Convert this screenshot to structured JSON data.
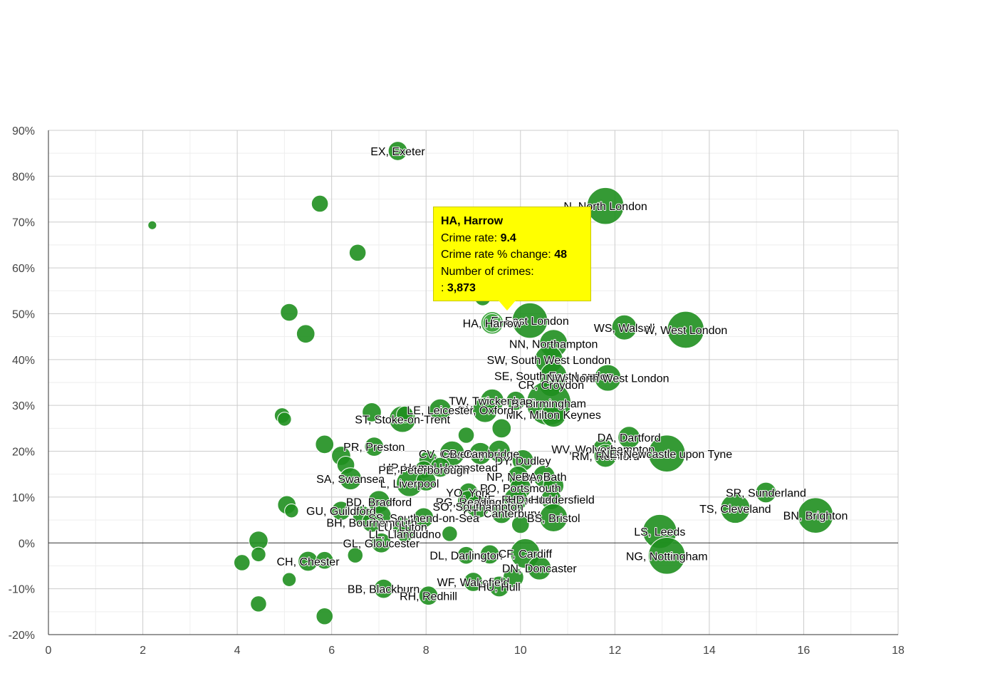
{
  "chart_data": {
    "type": "scatter",
    "title": "",
    "xlabel": "",
    "ylabel": "",
    "xlim": [
      0,
      18
    ],
    "ylim": [
      -20,
      90
    ],
    "x_ticks": [
      "0",
      "2",
      "4",
      "6",
      "8",
      "10",
      "12",
      "14",
      "16",
      "18"
    ],
    "y_ticks": [
      "90%",
      "80%",
      "70%",
      "60%",
      "50%",
      "40%",
      "30%",
      "20%",
      "10%",
      "0%",
      "-10%",
      "-20%"
    ],
    "grid": true,
    "points": [
      {
        "x": 7.4,
        "y": 85.5,
        "size": 1.8,
        "label": "EX, Exeter"
      },
      {
        "x": 11.8,
        "y": 73.5,
        "size": 4.2,
        "label": "N, North London"
      },
      {
        "x": 5.75,
        "y": 74,
        "size": 1.5,
        "label": ""
      },
      {
        "x": 2.2,
        "y": 69.3,
        "size": 0.4,
        "label": ""
      },
      {
        "x": 6.55,
        "y": 63.3,
        "size": 1.5,
        "label": ""
      },
      {
        "x": 9.2,
        "y": 53.5,
        "size": 1.4,
        "label": ""
      },
      {
        "x": 5.1,
        "y": 50.3,
        "size": 1.6,
        "label": ""
      },
      {
        "x": 5.45,
        "y": 45.6,
        "size": 1.7,
        "label": ""
      },
      {
        "x": 10.2,
        "y": 48.5,
        "size": 4.0,
        "label": "E, East London"
      },
      {
        "x": 9.4,
        "y": 48,
        "size": 2.3,
        "label": "HA, Harrow",
        "highlight": true
      },
      {
        "x": 12.2,
        "y": 47,
        "size": 2.6,
        "label": "WS, Walsall"
      },
      {
        "x": 13.5,
        "y": 46.5,
        "size": 4.2,
        "label": "W, West London"
      },
      {
        "x": 10.7,
        "y": 43.5,
        "size": 3.0,
        "label": "NN, Northampton"
      },
      {
        "x": 10.6,
        "y": 40,
        "size": 3.0,
        "label": "SW, South West London"
      },
      {
        "x": 10.7,
        "y": 36.5,
        "size": 2.8,
        "label": "SE, South East London"
      },
      {
        "x": 11.85,
        "y": 36,
        "size": 2.8,
        "label": "NW, North West London"
      },
      {
        "x": 10.65,
        "y": 34.5,
        "size": 2.4,
        "label": "CR, Croydon"
      },
      {
        "x": 9.4,
        "y": 31,
        "size": 2.4,
        "label": "TW, Twickenham"
      },
      {
        "x": 9.9,
        "y": 31,
        "size": 1.8,
        "label": ""
      },
      {
        "x": 10.6,
        "y": 30.5,
        "size": 5.2,
        "label": "B, Birmingham"
      },
      {
        "x": 10.7,
        "y": 28,
        "size": 2.6,
        "label": "MK, Milton Keynes"
      },
      {
        "x": 9.25,
        "y": 29,
        "size": 2.6,
        "label": "OX, Oxford"
      },
      {
        "x": 8.3,
        "y": 29,
        "size": 2.2,
        "label": "LE, Leicester"
      },
      {
        "x": 7.5,
        "y": 27,
        "size": 2.8,
        "label": "ST, Stoke-on-Trent"
      },
      {
        "x": 6.85,
        "y": 28.5,
        "size": 1.8,
        "label": ""
      },
      {
        "x": 7.55,
        "y": 28,
        "size": 1.5,
        "label": ""
      },
      {
        "x": 4.95,
        "y": 27.8,
        "size": 1.3,
        "label": ""
      },
      {
        "x": 5.0,
        "y": 27,
        "size": 1.1,
        "label": ""
      },
      {
        "x": 9.6,
        "y": 25,
        "size": 1.8,
        "label": ""
      },
      {
        "x": 8.85,
        "y": 23.5,
        "size": 1.4,
        "label": ""
      },
      {
        "x": 12.3,
        "y": 23,
        "size": 2.2,
        "label": "DA, Dartford"
      },
      {
        "x": 11.75,
        "y": 20.5,
        "size": 2.0,
        "label": "WV, Wolverhampton"
      },
      {
        "x": 11.8,
        "y": 19,
        "size": 2.3,
        "label": "RM, Romford"
      },
      {
        "x": 13.1,
        "y": 19.5,
        "size": 4.2,
        "label": "NE, Newcastle upon Tyne"
      },
      {
        "x": 5.85,
        "y": 21.5,
        "size": 1.7,
        "label": ""
      },
      {
        "x": 6.9,
        "y": 21,
        "size": 1.8,
        "label": "PR, Preston"
      },
      {
        "x": 6.2,
        "y": 19,
        "size": 1.8,
        "label": ""
      },
      {
        "x": 6.3,
        "y": 17,
        "size": 1.6,
        "label": ""
      },
      {
        "x": 8.55,
        "y": 19.5,
        "size": 2.6,
        "label": "CV, Coventry"
      },
      {
        "x": 9.15,
        "y": 19.5,
        "size": 2.2,
        "label": "CB, Cambridge"
      },
      {
        "x": 9.55,
        "y": 20,
        "size": 2.2,
        "label": ""
      },
      {
        "x": 10.05,
        "y": 18,
        "size": 2.1,
        "label": "DY, Dudley"
      },
      {
        "x": 8.05,
        "y": 18,
        "size": 1.8,
        "label": ""
      },
      {
        "x": 8.3,
        "y": 16.5,
        "size": 1.9,
        "label": "HP, Hemel Hempstead"
      },
      {
        "x": 7.95,
        "y": 16,
        "size": 1.6,
        "label": "PE, Peterborough"
      },
      {
        "x": 9.95,
        "y": 14.5,
        "size": 2.0,
        "label": "NP, Newport"
      },
      {
        "x": 10.5,
        "y": 14.5,
        "size": 2.2,
        "label": "BA, Bath"
      },
      {
        "x": 6.4,
        "y": 14,
        "size": 2.2,
        "label": "SA, Swansea"
      },
      {
        "x": 7.65,
        "y": 13,
        "size": 2.8,
        "label": "L, Liverpool"
      },
      {
        "x": 8.0,
        "y": 13.5,
        "size": 1.9,
        "label": ""
      },
      {
        "x": 10.0,
        "y": 12,
        "size": 2.1,
        "label": "PO, Portsmouth"
      },
      {
        "x": 10.7,
        "y": 12.5,
        "size": 2.0,
        "label": ""
      },
      {
        "x": 8.9,
        "y": 11,
        "size": 1.8,
        "label": "YO, York"
      },
      {
        "x": 9.9,
        "y": 9.5,
        "size": 2.4,
        "label": "ME, Rochester"
      },
      {
        "x": 10.65,
        "y": 9.5,
        "size": 2.0,
        "label": "HD, Huddersfield"
      },
      {
        "x": 8.9,
        "y": 9,
        "size": 2.2,
        "label": "RG, Reading"
      },
      {
        "x": 7.0,
        "y": 9,
        "size": 2.2,
        "label": "BD, Bradford"
      },
      {
        "x": 9.1,
        "y": 8,
        "size": 2.4,
        "label": "SO, Southampton"
      },
      {
        "x": 9.6,
        "y": 6.5,
        "size": 2.0,
        "label": "CT, Canterbury"
      },
      {
        "x": 10.7,
        "y": 5.5,
        "size": 3.0,
        "label": "BS, Bristol"
      },
      {
        "x": 5.05,
        "y": 8.3,
        "size": 1.7,
        "label": ""
      },
      {
        "x": 5.15,
        "y": 7,
        "size": 1.1,
        "label": ""
      },
      {
        "x": 6.2,
        "y": 7,
        "size": 1.8,
        "label": "GU, Guildford"
      },
      {
        "x": 6.65,
        "y": 6,
        "size": 1.8,
        "label": ""
      },
      {
        "x": 7.05,
        "y": 6,
        "size": 1.9,
        "label": ""
      },
      {
        "x": 7.95,
        "y": 5.5,
        "size": 1.9,
        "label": "SS, Southend-on-Sea"
      },
      {
        "x": 6.85,
        "y": 4.5,
        "size": 1.9,
        "label": "BH, Bournemouth"
      },
      {
        "x": 7.5,
        "y": 3.5,
        "size": 1.9,
        "label": "LU, Luton"
      },
      {
        "x": 10.0,
        "y": 4,
        "size": 1.6,
        "label": ""
      },
      {
        "x": 8.5,
        "y": 2,
        "size": 1.3,
        "label": ""
      },
      {
        "x": 7.55,
        "y": 2,
        "size": 1.5,
        "label": "LL, Llandudno"
      },
      {
        "x": 12.95,
        "y": 2.5,
        "size": 3.8,
        "label": "LS, Leeds"
      },
      {
        "x": 4.45,
        "y": 0.5,
        "size": 1.8,
        "label": ""
      },
      {
        "x": 7.05,
        "y": 0,
        "size": 1.9,
        "label": "GL, Gloucester"
      },
      {
        "x": 16.25,
        "y": 6,
        "size": 4.0,
        "label": "BN, Brighton"
      },
      {
        "x": 14.55,
        "y": 7.5,
        "size": 3.2,
        "label": "TS, Cleveland"
      },
      {
        "x": 15.2,
        "y": 11,
        "size": 2.0,
        "label": "SR, Sunderland"
      },
      {
        "x": 4.45,
        "y": -2.5,
        "size": 1.2,
        "label": ""
      },
      {
        "x": 6.5,
        "y": -2.7,
        "size": 1.3,
        "label": ""
      },
      {
        "x": 8.85,
        "y": -2.7,
        "size": 1.6,
        "label": "DL, Darlington"
      },
      {
        "x": 9.35,
        "y": -2.5,
        "size": 1.8,
        "label": ""
      },
      {
        "x": 10.1,
        "y": -2.3,
        "size": 3.2,
        "label": "CF, Cardiff"
      },
      {
        "x": 13.1,
        "y": -2.8,
        "size": 4.2,
        "label": "NG, Nottingham"
      },
      {
        "x": 4.1,
        "y": -4.3,
        "size": 1.4,
        "label": ""
      },
      {
        "x": 5.5,
        "y": -4,
        "size": 1.9,
        "label": "CH, Chester"
      },
      {
        "x": 5.85,
        "y": -3.8,
        "size": 1.6,
        "label": ""
      },
      {
        "x": 10.4,
        "y": -5.5,
        "size": 2.4,
        "label": "DN, Doncaster"
      },
      {
        "x": 5.1,
        "y": -8,
        "size": 1.1,
        "label": ""
      },
      {
        "x": 9.0,
        "y": -8.5,
        "size": 1.8,
        "label": "WF, Wakefield"
      },
      {
        "x": 9.85,
        "y": -7.5,
        "size": 2.0,
        "label": ""
      },
      {
        "x": 9.55,
        "y": -9.5,
        "size": 2.0,
        "label": "HU, Hull"
      },
      {
        "x": 7.1,
        "y": -10,
        "size": 1.8,
        "label": "BB, Blackburn"
      },
      {
        "x": 8.05,
        "y": -11.5,
        "size": 1.8,
        "label": "RH, Redhill"
      },
      {
        "x": 4.45,
        "y": -13.3,
        "size": 1.4,
        "label": ""
      },
      {
        "x": 5.85,
        "y": -16,
        "size": 1.5,
        "label": ""
      }
    ]
  },
  "tooltip": {
    "title": "HA, Harrow",
    "rate_label": "Crime rate: ",
    "rate_value": "9.4",
    "change_label": "Crime rate % change: ",
    "change_value": "48",
    "count_label": "Number of crimes:",
    "count_prefix": ": ",
    "count_value": "3,873"
  }
}
